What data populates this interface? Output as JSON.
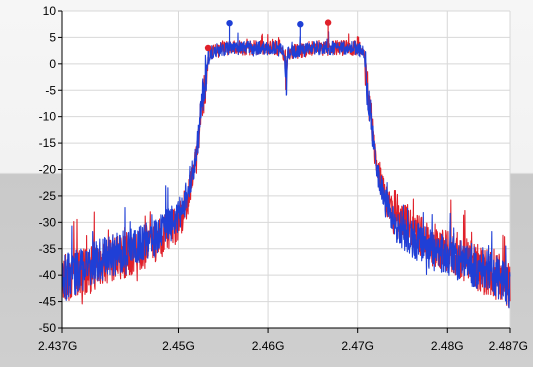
{
  "colors": {
    "plot_background": "#ffffff",
    "grid": "#d8d8d8",
    "axis": "#000000",
    "series_blue": "#1f3fd6",
    "series_red": "#e0202a"
  },
  "chart_data": {
    "type": "line",
    "title": "",
    "xlabel": "",
    "ylabel": "",
    "xlim": [
      2.437,
      2.487
    ],
    "ylim": [
      -50,
      10
    ],
    "grid": true,
    "legend": "none",
    "x_ticks": [
      {
        "value": 2.437,
        "label": "2.437G"
      },
      {
        "value": 2.45,
        "label": "2.45G"
      },
      {
        "value": 2.46,
        "label": "2.46G"
      },
      {
        "value": 2.47,
        "label": "2.47G"
      },
      {
        "value": 2.48,
        "label": "2.48G"
      },
      {
        "value": 2.487,
        "label": "2.487G"
      }
    ],
    "y_ticks": [
      {
        "value": 10,
        "label": "10"
      },
      {
        "value": 5,
        "label": "5"
      },
      {
        "value": 0,
        "label": "0"
      },
      {
        "value": -5,
        "label": "-5"
      },
      {
        "value": -10,
        "label": "-10"
      },
      {
        "value": -15,
        "label": "-15"
      },
      {
        "value": -20,
        "label": "-20"
      },
      {
        "value": -25,
        "label": "-25"
      },
      {
        "value": -30,
        "label": "-30"
      },
      {
        "value": -35,
        "label": "-35"
      },
      {
        "value": -40,
        "label": "-40"
      },
      {
        "value": -45,
        "label": "-45"
      },
      {
        "value": -50,
        "label": "-50"
      }
    ],
    "series": [
      {
        "color": "#e0202a",
        "envelope": [
          [
            2.437,
            -41
          ],
          [
            2.44,
            -39
          ],
          [
            2.443,
            -37
          ],
          [
            2.446,
            -35
          ],
          [
            2.448,
            -33
          ],
          [
            2.45,
            -30
          ],
          [
            2.451,
            -26
          ],
          [
            2.452,
            -18
          ],
          [
            2.4525,
            -10
          ],
          [
            2.453,
            -3
          ],
          [
            2.4535,
            2
          ],
          [
            2.455,
            3
          ],
          [
            2.458,
            3
          ],
          [
            2.461,
            3
          ],
          [
            2.4618,
            2
          ],
          [
            2.462,
            -3
          ],
          [
            2.4622,
            2
          ],
          [
            2.465,
            3
          ],
          [
            2.468,
            3
          ],
          [
            2.47,
            3
          ],
          [
            2.4707,
            2
          ],
          [
            2.471,
            -4
          ],
          [
            2.4715,
            -10
          ],
          [
            2.472,
            -18
          ],
          [
            2.473,
            -25
          ],
          [
            2.474,
            -29
          ],
          [
            2.476,
            -31
          ],
          [
            2.478,
            -34
          ],
          [
            2.481,
            -36
          ],
          [
            2.484,
            -39
          ],
          [
            2.487,
            -42
          ]
        ],
        "noise": 2.6,
        "peak_markers": [
          [
            2.4533,
            3
          ],
          [
            2.4667,
            7.8
          ]
        ]
      },
      {
        "color": "#1f3fd6",
        "envelope": [
          [
            2.437,
            -41
          ],
          [
            2.44,
            -38
          ],
          [
            2.443,
            -36
          ],
          [
            2.446,
            -34
          ],
          [
            2.448,
            -32
          ],
          [
            2.45,
            -29
          ],
          [
            2.451,
            -25
          ],
          [
            2.452,
            -17
          ],
          [
            2.4525,
            -9
          ],
          [
            2.453,
            -2
          ],
          [
            2.4535,
            2
          ],
          [
            2.455,
            3
          ],
          [
            2.458,
            3
          ],
          [
            2.461,
            3
          ],
          [
            2.4618,
            2
          ],
          [
            2.462,
            -4
          ],
          [
            2.4622,
            2
          ],
          [
            2.465,
            3
          ],
          [
            2.468,
            3
          ],
          [
            2.47,
            3
          ],
          [
            2.4707,
            2
          ],
          [
            2.471,
            -4
          ],
          [
            2.4715,
            -11
          ],
          [
            2.472,
            -19
          ],
          [
            2.473,
            -26
          ],
          [
            2.474,
            -30
          ],
          [
            2.476,
            -33
          ],
          [
            2.478,
            -35
          ],
          [
            2.481,
            -37
          ],
          [
            2.484,
            -39
          ],
          [
            2.487,
            -42
          ]
        ],
        "noise": 2.4,
        "peak_markers": [
          [
            2.4557,
            7.7
          ],
          [
            2.4636,
            7.5
          ]
        ]
      }
    ]
  }
}
